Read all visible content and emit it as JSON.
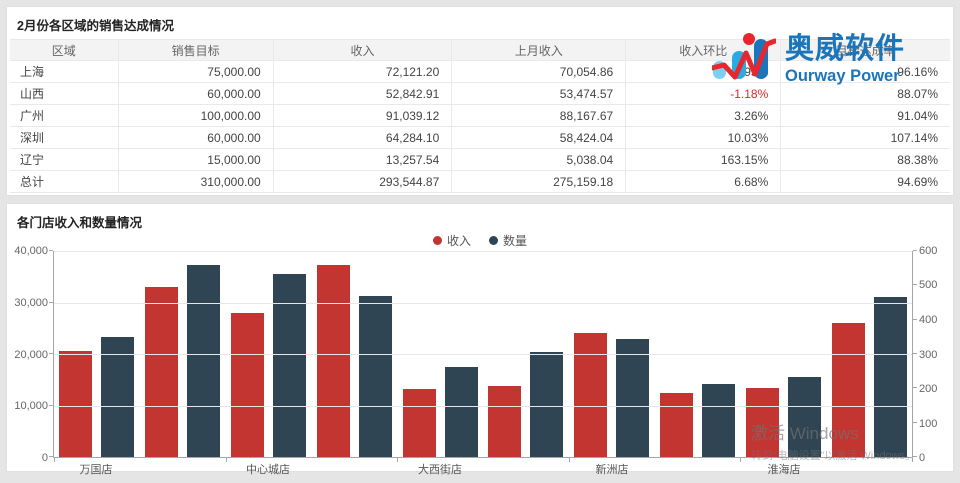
{
  "page": {
    "background": "#e5e5e5"
  },
  "logo": {
    "name_cn": "奥威软件",
    "name_en": "Ourway Power",
    "brand_blue": "#1b75bb",
    "accent_red": "#e8262d"
  },
  "sales_table": {
    "title": "2月份各区域的销售达成情况",
    "columns": [
      "区域",
      "销售目标",
      "收入",
      "上月收入",
      "收入环比",
      "目标达成率"
    ],
    "rows": [
      {
        "region": "上海",
        "target": "75,000.00",
        "revenue": "72,121.20",
        "last_month": "70,054.86",
        "mom": "2.95%",
        "mom_negative": false,
        "achievement": "96.16%"
      },
      {
        "region": "山西",
        "target": "60,000.00",
        "revenue": "52,842.91",
        "last_month": "53,474.57",
        "mom": "-1.18%",
        "mom_negative": true,
        "achievement": "88.07%"
      },
      {
        "region": "广州",
        "target": "100,000.00",
        "revenue": "91,039.12",
        "last_month": "88,167.67",
        "mom": "3.26%",
        "mom_negative": false,
        "achievement": "91.04%"
      },
      {
        "region": "深圳",
        "target": "60,000.00",
        "revenue": "64,284.10",
        "last_month": "58,424.04",
        "mom": "10.03%",
        "mom_negative": false,
        "achievement": "107.14%"
      },
      {
        "region": "辽宁",
        "target": "15,000.00",
        "revenue": "13,257.54",
        "last_month": "5,038.04",
        "mom": "163.15%",
        "mom_negative": false,
        "achievement": "88.38%"
      },
      {
        "region": "总计",
        "target": "310,000.00",
        "revenue": "293,544.87",
        "last_month": "275,159.18",
        "mom": "6.68%",
        "mom_negative": false,
        "achievement": "94.69%"
      }
    ]
  },
  "chart": {
    "title": "各门店收入和数量情况"
  },
  "chart_data": {
    "type": "bar",
    "title": "各门店收入和数量情况",
    "categories": [
      "万国店",
      "",
      "中心城店",
      "",
      "大西街店",
      "",
      "新洲店",
      "",
      "淮海店",
      ""
    ],
    "x_label_interval": 2,
    "series": [
      {
        "name": "收入",
        "axis": "left",
        "color": "#c23531",
        "values": [
          20600,
          33100,
          27900,
          37200,
          13300,
          13800,
          24100,
          12400,
          13400,
          26100
        ]
      },
      {
        "name": "数量",
        "axis": "right",
        "color": "#2f4554",
        "values": [
          350,
          560,
          533,
          469,
          262,
          306,
          345,
          214,
          232,
          467
        ]
      }
    ],
    "left_axis": {
      "max": 40000,
      "ticks": [
        "40,000",
        "30,000",
        "20,000",
        "10,000",
        "0"
      ]
    },
    "right_axis": {
      "max": 600,
      "ticks": [
        "600",
        "500",
        "400",
        "300",
        "200",
        "100",
        "0"
      ]
    },
    "legend_position": "top-center",
    "grid": true
  },
  "watermark": {
    "line1": "激活 Windows",
    "line2": "转到“电脑设置”以激活 Windows。"
  }
}
